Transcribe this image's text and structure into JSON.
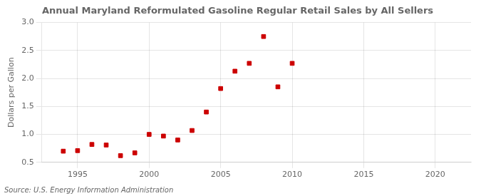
{
  "chart_data": {
    "type": "scatter",
    "title": "Annual Maryland Reformulated Gasoline Regular Retail Sales by All Sellers",
    "ylabel": "Dollars per Gallon",
    "annotations": [
      "Source: U.S. Energy Information Administration"
    ],
    "x": [
      1994,
      1995,
      1996,
      1997,
      1998,
      1999,
      2000,
      2001,
      2002,
      2003,
      2004,
      2005,
      2006,
      2007,
      2008,
      2009,
      2010
    ],
    "values": [
      0.7,
      0.71,
      0.82,
      0.81,
      0.62,
      0.67,
      1.0,
      0.97,
      0.9,
      1.07,
      1.4,
      1.82,
      2.13,
      2.27,
      2.75,
      1.85,
      2.27
    ],
    "color": "#cc0000",
    "marker": "square",
    "xlim": [
      1992.5,
      2022.5
    ],
    "ylim": [
      0.5,
      3.0
    ],
    "xticks": [
      1995,
      2000,
      2005,
      2010,
      2015,
      2020
    ],
    "yticks": [
      0.5,
      {
        "value": 1,
        "label": "1.0"
      },
      1.5,
      {
        "value": 2,
        "label": "2.0"
      },
      2.5,
      {
        "value": 3,
        "label": "3.0"
      }
    ],
    "grid": true
  }
}
